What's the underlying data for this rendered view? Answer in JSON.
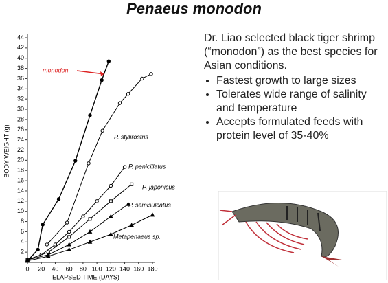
{
  "title": "Penaeus monodon",
  "intro": "Dr. Liao selected black tiger shrimp (“monodon”) as the best species for Asian conditions.",
  "bullets": [
    "Fastest growth to large sizes",
    "Tolerates wide range of salinity and temperature",
    "Accepts formulated feeds with protein level of 35-40%"
  ],
  "chart_data": {
    "type": "line",
    "x_label": "ELAPSED TIME (DAYS)",
    "y_label": "BODY WEIGHT (g)",
    "xlim": [
      0,
      180
    ],
    "xticks": [
      0,
      20,
      40,
      60,
      80,
      100,
      120,
      140,
      160,
      180
    ],
    "ylim": [
      0,
      44
    ],
    "yticks": [
      0,
      2,
      4,
      6,
      8,
      10,
      12,
      14,
      16,
      18,
      20,
      22,
      24,
      26,
      28,
      30,
      32,
      34,
      36,
      38,
      40,
      42,
      44
    ],
    "series": [
      {
        "name": "monodon",
        "color": "#000000",
        "marker": "filled",
        "x": [
          0,
          15,
          22,
          45,
          69,
          90,
          107,
          117
        ],
        "values": [
          0.3,
          2.5,
          7.4,
          12.4,
          19.9,
          28.8,
          35.7,
          39.4
        ]
      },
      {
        "name": "P. stylirostris",
        "color": "#000000",
        "marker": "open",
        "x": [
          28,
          57,
          88,
          108,
          133,
          145,
          165,
          178
        ],
        "values": [
          3.5,
          7.8,
          19.4,
          25.8,
          31.2,
          33,
          36,
          36.9
        ]
      },
      {
        "name": "P. penicillatus",
        "color": "#000000",
        "marker": "open",
        "x": [
          0,
          20,
          40,
          60,
          80,
          100,
          120,
          140
        ],
        "values": [
          0.5,
          1.5,
          3.5,
          6,
          9,
          12,
          15,
          18.7
        ]
      },
      {
        "name": "P. japonicus",
        "color": "#000000",
        "marker": "square",
        "x": [
          0,
          30,
          60,
          90,
          120,
          150
        ],
        "values": [
          0.5,
          2,
          5,
          8.5,
          12,
          15.3
        ]
      },
      {
        "name": "P. semisulcatus",
        "color": "#000000",
        "marker": "triangle",
        "x": [
          0,
          30,
          60,
          90,
          120,
          145
        ],
        "values": [
          0.5,
          1.5,
          3.5,
          6,
          9,
          11.4
        ]
      },
      {
        "name": "Metapenaeus sp.",
        "color": "#000000",
        "marker": "triangle",
        "x": [
          0,
          30,
          60,
          90,
          120,
          150,
          180
        ],
        "values": [
          0.3,
          1.2,
          2.5,
          4,
          5.5,
          7.3,
          9.3
        ]
      }
    ]
  }
}
